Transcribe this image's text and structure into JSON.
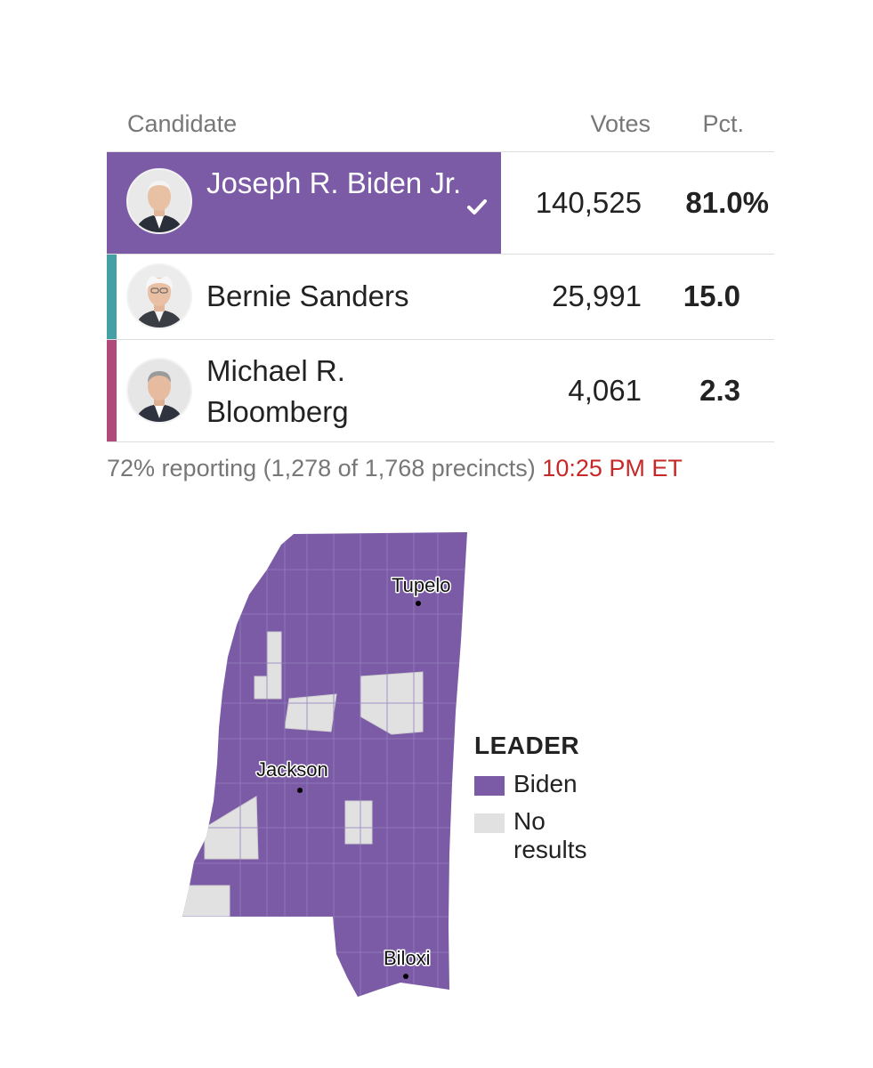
{
  "colors": {
    "biden": "#7b5aa6",
    "sanders": "#45a0a6",
    "bloomberg": "#b04a7b",
    "no_results": "#e1e1e1",
    "time": "#c62828"
  },
  "table": {
    "headers": {
      "candidate": "Candidate",
      "votes": "Votes",
      "pct": "Pct."
    },
    "rows": [
      {
        "name": "Joseph R. Biden Jr.",
        "votes": "140,525",
        "pct": "81.0%",
        "winner": true,
        "icon": "check-icon"
      },
      {
        "name": "Bernie Sanders",
        "votes": "25,991",
        "pct": "15.0"
      },
      {
        "name": "Michael R. Bloomberg",
        "votes": "4,061",
        "pct": "2.3"
      }
    ]
  },
  "reporting": {
    "text": "72% reporting (1,278 of 1,768 precincts)",
    "time": "10:25 PM ET"
  },
  "map": {
    "cities": [
      "Tupelo",
      "Jackson",
      "Biloxi"
    ]
  },
  "legend": {
    "title": "LEADER",
    "items": [
      {
        "label": "Biden",
        "color": "#7b5aa6"
      },
      {
        "label": "No results",
        "color": "#e1e1e1"
      }
    ]
  }
}
